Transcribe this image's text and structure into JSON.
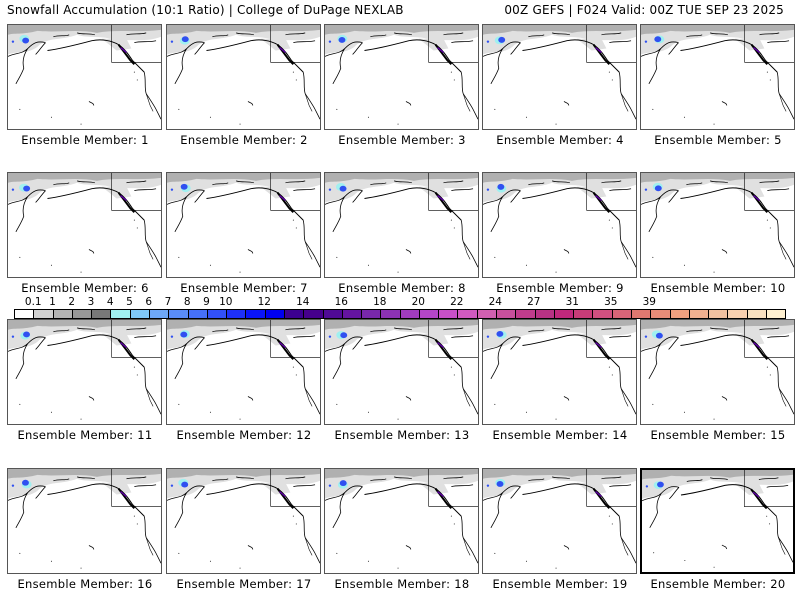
{
  "header": {
    "title_left": "Snowfall Accumulation (10:1 Ratio) | College of DuPage NEXLAB",
    "title_right": "00Z GEFS | F024 Valid: 00Z TUE SEP 23 2025"
  },
  "panels": [
    {
      "label": "Ensemble Member: 1"
    },
    {
      "label": "Ensemble Member: 2"
    },
    {
      "label": "Ensemble Member: 3"
    },
    {
      "label": "Ensemble Member: 4"
    },
    {
      "label": "Ensemble Member: 5"
    },
    {
      "label": "Ensemble Member: 6"
    },
    {
      "label": "Ensemble Member: 7"
    },
    {
      "label": "Ensemble Member: 8"
    },
    {
      "label": "Ensemble Member: 9"
    },
    {
      "label": "Ensemble Member: 10"
    },
    {
      "label": "Ensemble Member: 11"
    },
    {
      "label": "Ensemble Member: 12"
    },
    {
      "label": "Ensemble Member: 13"
    },
    {
      "label": "Ensemble Member: 14"
    },
    {
      "label": "Ensemble Member: 15"
    },
    {
      "label": "Ensemble Member: 16"
    },
    {
      "label": "Ensemble Member: 17"
    },
    {
      "label": "Ensemble Member: 18"
    },
    {
      "label": "Ensemble Member: 19"
    },
    {
      "label": "Ensemble Member: 20",
      "selected": true
    }
  ],
  "colorbar": {
    "labels": [
      "0.1",
      "1",
      "2",
      "3",
      "4",
      "5",
      "6",
      "7",
      "8",
      "9",
      "10",
      "12",
      "14",
      "16",
      "18",
      "20",
      "22",
      "24",
      "27",
      "31",
      "35",
      "39"
    ],
    "colors": [
      "#ffffff",
      "#d0d0d0",
      "#b4b4b4",
      "#989898",
      "#787878",
      "#a0f0f0",
      "#80c8f8",
      "#6ea8f8",
      "#5a8cf8",
      "#4670f8",
      "#3250f8",
      "#1e30f8",
      "#0a14f8",
      "#0000f0",
      "#3c0090",
      "#46008c",
      "#500a96",
      "#6414a0",
      "#7828aa",
      "#8c32b4",
      "#a03cbe",
      "#b446c8",
      "#c850c8",
      "#d05ac0",
      "#d060b0",
      "#c8509c",
      "#c03c8c",
      "#b83284",
      "#c0287c",
      "#c83c78",
      "#d05080",
      "#d86478",
      "#e07870",
      "#e88c78",
      "#f0a080",
      "#f0b090",
      "#f0c0a0",
      "#f8d0b0",
      "#f8e0c0",
      "#fff0d0"
    ]
  },
  "map_colors": {
    "snow_light": "#e0e0e0",
    "snow_mid": "#b0b0b0",
    "snow_blue": "#3050f0",
    "snow_cyan": "#a0f0f0",
    "coast": "#000000"
  }
}
